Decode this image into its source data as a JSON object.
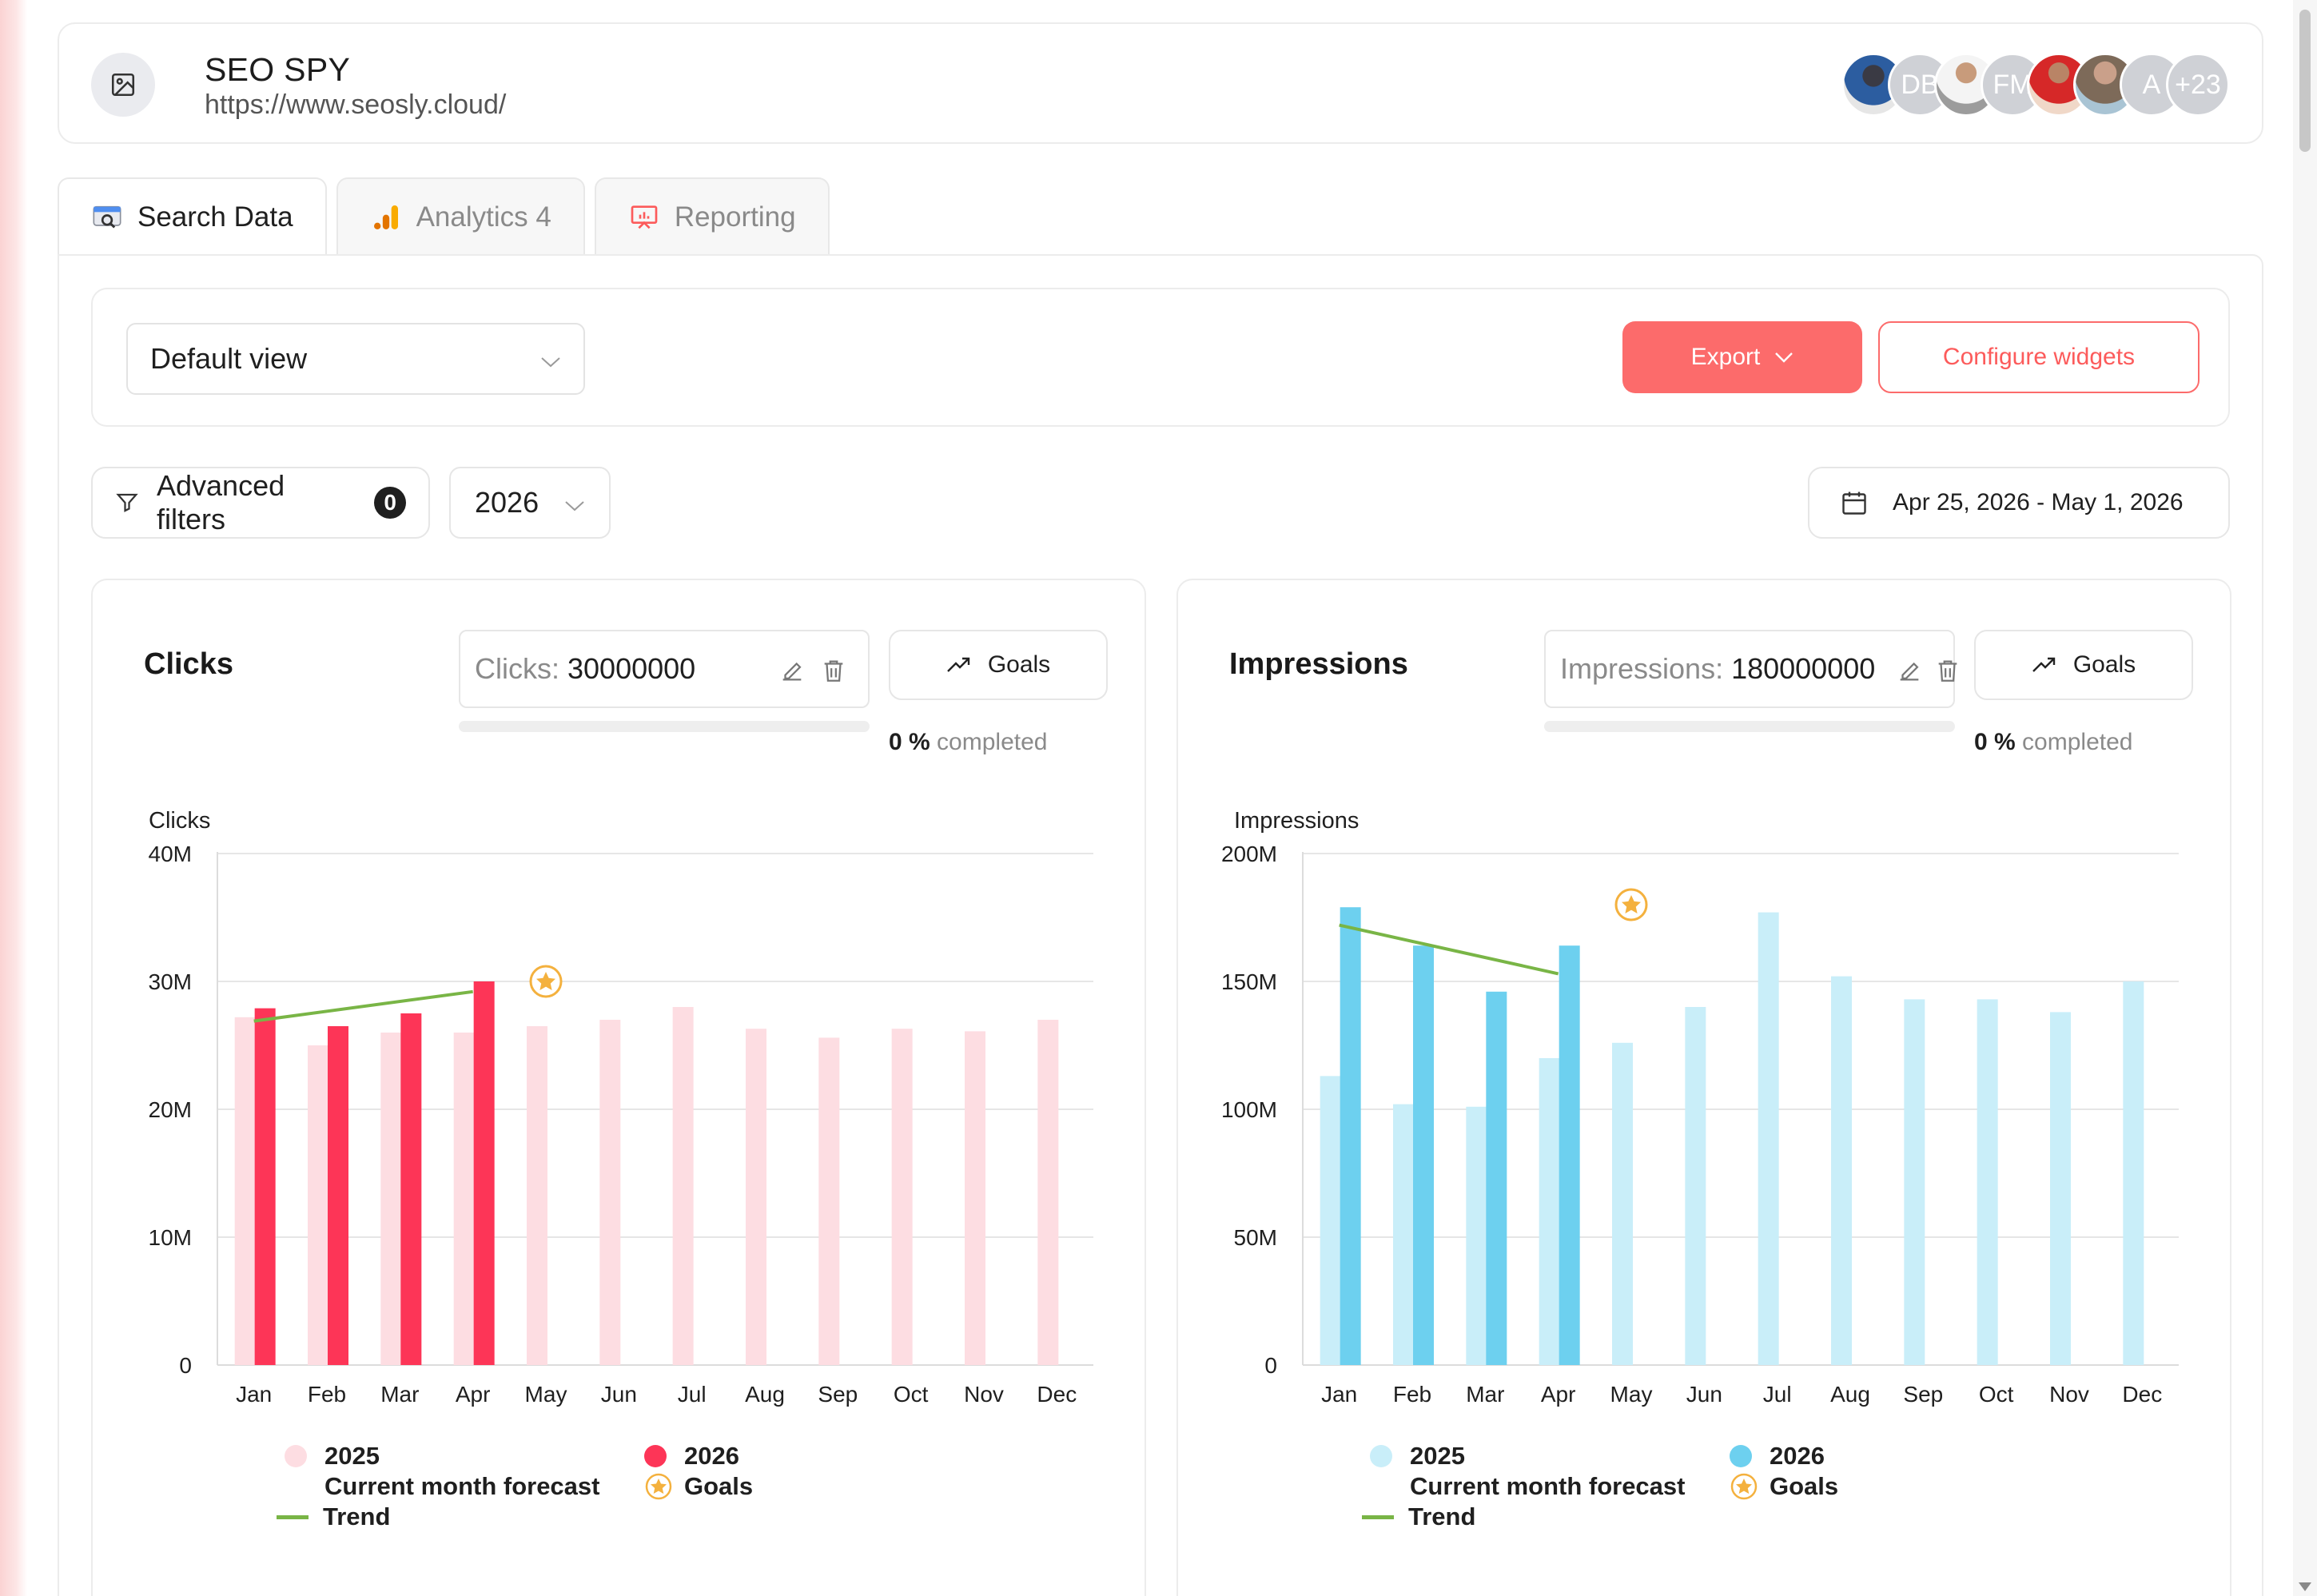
{
  "site": {
    "title": "SEO SPY",
    "url": "https://www.seosly.cloud/"
  },
  "avatars": [
    {
      "kind": "photo",
      "style": "photo1"
    },
    {
      "kind": "initials",
      "text": "DB"
    },
    {
      "kind": "photo",
      "style": "photo2"
    },
    {
      "kind": "initials",
      "text": "FM"
    },
    {
      "kind": "photo",
      "style": "photo3"
    },
    {
      "kind": "photo",
      "style": "photo4"
    },
    {
      "kind": "initials",
      "text": "A"
    },
    {
      "kind": "initials",
      "text": "+23"
    }
  ],
  "tabs": [
    {
      "label": "Search Data",
      "icon": "search-console-icon",
      "active": true
    },
    {
      "label": "Analytics 4",
      "icon": "analytics-icon",
      "active": false
    },
    {
      "label": "Reporting",
      "icon": "presentation-icon",
      "active": false
    }
  ],
  "toolbar": {
    "view_label": "Default view",
    "export_label": "Export",
    "configure_label": "Configure widgets",
    "filters_label": "Advanced filters",
    "filters_count": "0",
    "year": "2026",
    "date_range": "Apr 25, 2026 - May 1, 2026"
  },
  "colors": {
    "accent": "#fc6b6b",
    "clicks_2026": "#fd3557",
    "clicks_2025": "#fddde2",
    "impressions_2026": "#6dd0ef",
    "impressions_2025": "#c9eef9",
    "trend": "#79b546",
    "goal": "#f4b13e"
  },
  "widgets": [
    {
      "id": "clicks",
      "title": "Clicks",
      "goal_prefix": "Clicks:",
      "goal_value": "30000000",
      "goals_label": "Goals",
      "completed_pct": "0 %",
      "completed_label": "completed",
      "legend": {
        "y2025": "2025",
        "y2026": "2026",
        "forecast": "Current month forecast",
        "goals": "Goals",
        "trend": "Trend"
      }
    },
    {
      "id": "impressions",
      "title": "Impressions",
      "goal_prefix": "Impressions:",
      "goal_value": "180000000",
      "goals_label": "Goals",
      "completed_pct": "0 %",
      "completed_label": "completed",
      "legend": {
        "y2025": "2025",
        "y2026": "2026",
        "forecast": "Current month forecast",
        "goals": "Goals",
        "trend": "Trend"
      }
    }
  ],
  "chart_data": [
    {
      "type": "bar",
      "ylabel": "Clicks",
      "ylim": [
        0,
        40000000
      ],
      "yticks": [
        "0",
        "10M",
        "20M",
        "30M",
        "40M"
      ],
      "categories": [
        "Jan",
        "Feb",
        "Mar",
        "Apr",
        "May",
        "Jun",
        "Jul",
        "Aug",
        "Sep",
        "Oct",
        "Nov",
        "Dec"
      ],
      "series": [
        {
          "name": "2025",
          "values": [
            27200000,
            25000000,
            26000000,
            26000000,
            26500000,
            27000000,
            28000000,
            26300000,
            25600000,
            26300000,
            26100000,
            27000000
          ]
        },
        {
          "name": "2026",
          "values": [
            27900000,
            26500000,
            27500000,
            30000000,
            null,
            null,
            null,
            null,
            null,
            null,
            null,
            null
          ]
        }
      ],
      "trend": {
        "name": "Trend",
        "from": {
          "x": "Jan",
          "y": 26900000
        },
        "to": {
          "x": "Apr",
          "y": 29200000
        }
      },
      "goal": {
        "name": "Goals",
        "x": "May",
        "y": 30000000
      },
      "legend_position": "bottom",
      "grid": true
    },
    {
      "type": "bar",
      "ylabel": "Impressions",
      "ylim": [
        0,
        200000000
      ],
      "yticks": [
        "0",
        "50M",
        "100M",
        "150M",
        "200M"
      ],
      "categories": [
        "Jan",
        "Feb",
        "Mar",
        "Apr",
        "May",
        "Jun",
        "Jul",
        "Aug",
        "Sep",
        "Oct",
        "Nov",
        "Dec"
      ],
      "series": [
        {
          "name": "2025",
          "values": [
            113000000,
            102000000,
            101000000,
            120000000,
            126000000,
            140000000,
            177000000,
            152000000,
            143000000,
            143000000,
            138000000,
            150000000
          ]
        },
        {
          "name": "2026",
          "values": [
            179000000,
            164000000,
            146000000,
            164000000,
            null,
            null,
            null,
            null,
            null,
            null,
            null,
            null
          ]
        }
      ],
      "trend": {
        "name": "Trend",
        "from": {
          "x": "Jan",
          "y": 172000000
        },
        "to": {
          "x": "Apr",
          "y": 153000000
        }
      },
      "goal": {
        "name": "Goals",
        "x": "May",
        "y": 180000000
      },
      "legend_position": "bottom",
      "grid": true
    }
  ]
}
